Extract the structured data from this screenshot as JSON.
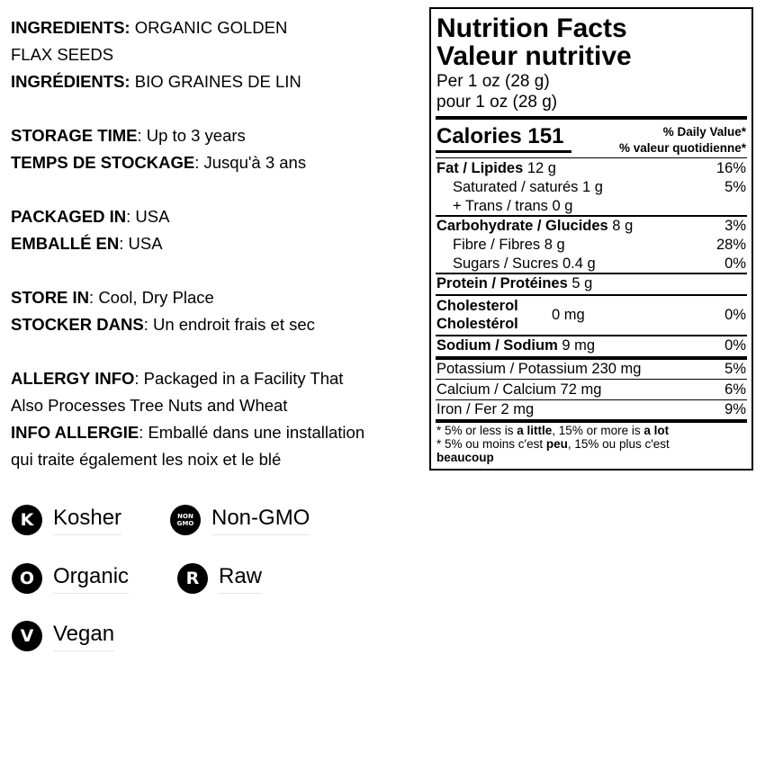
{
  "left": [
    {
      "b": "INGREDIENTS:",
      "t": " ORGANIC GOLDEN"
    },
    {
      "b": "",
      "t": "FLAX SEEDS"
    },
    {
      "b": "INGRÉDIENTS:",
      "t": " BIO GRAINES DE LIN"
    },
    {
      "b": "STORAGE TIME",
      "t": ": Up to 3 years"
    },
    {
      "b": "TEMPS DE STOCKAGE",
      "t": ": Jusqu'à 3 ans"
    },
    {
      "b": "PACKAGED IN",
      "t": ": USA"
    },
    {
      "b": "EMBALLÉ EN",
      "t": ": USA"
    },
    {
      "b": "STORE IN",
      "t": ": Cool, Dry Place"
    },
    {
      "b": "STOCKER DANS",
      "t": ": Un endroit frais et sec"
    },
    {
      "b": "ALLERGY INFO",
      "t": ": Packaged in a Facility That"
    },
    {
      "b": "",
      "t": "Also Processes Tree Nuts and Wheat"
    },
    {
      "b": "INFO ALLERGIE",
      "t": ": Emballé dans une installation"
    },
    {
      "b": "",
      "t": "qui traite également les noix et le blé"
    }
  ],
  "nutrition": {
    "title_en": "Nutrition Facts",
    "title_fr": "Valeur nutritive",
    "per_en": "Per 1 oz (28 g)",
    "per_fr": "pour 1 oz (28 g)",
    "calories": "Calories 151",
    "dv_en": "% Daily Value*",
    "dv_fr": "% valeur quotidienne*",
    "rows": [
      {
        "b": "Fat / Lipides",
        "t": " 12 g",
        "p": "16%"
      },
      {
        "b": "",
        "t": "Saturated / saturés 1 g",
        "p": "5%"
      },
      {
        "b": "",
        "t": "+ Trans / trans 0 g",
        "p": ""
      },
      {
        "b": "Carbohydrate / Glucides",
        "t": " 8 g",
        "p": "3%"
      },
      {
        "b": "",
        "t": "Fibre / Fibres 8 g",
        "p": "28%"
      },
      {
        "b": "",
        "t": "Sugars / Sucres 0.4 g",
        "p": "0%"
      },
      {
        "b": "Protein / Protéines",
        "t": " 5 g",
        "p": ""
      },
      {
        "b": "Cholesterol",
        "b2": "Cholestérol",
        "t": "0 mg",
        "p": "0%"
      },
      {
        "b": "Sodium / Sodium",
        "t": " 9 mg",
        "p": "0%"
      },
      {
        "b": "",
        "t": "Potassium / Potassium 230 mg",
        "p": "5%"
      },
      {
        "b": "",
        "t": "Calcium / Calcium 72 mg",
        "p": "6%"
      },
      {
        "b": "",
        "t": "Iron / Fer 2 mg",
        "p": "9%"
      }
    ],
    "foot": {
      "l1a": "* 5% or less is ",
      "l1b": "a little",
      "l1c": ", 15% or more is ",
      "l1d": "a lot",
      "l2a": "* 5% ou moins c'est ",
      "l2b": "peu",
      "l2c": ", 15% ou plus c'est",
      "l3": "beaucoup"
    }
  },
  "badges": [
    {
      "icon": "K",
      "label": "Kosher"
    },
    {
      "icon": "NON GMO",
      "label": "Non-GMO"
    },
    {
      "icon": "O",
      "label": "Organic"
    },
    {
      "icon": "R",
      "label": "Raw"
    },
    {
      "icon": "V",
      "label": "Vegan"
    }
  ]
}
